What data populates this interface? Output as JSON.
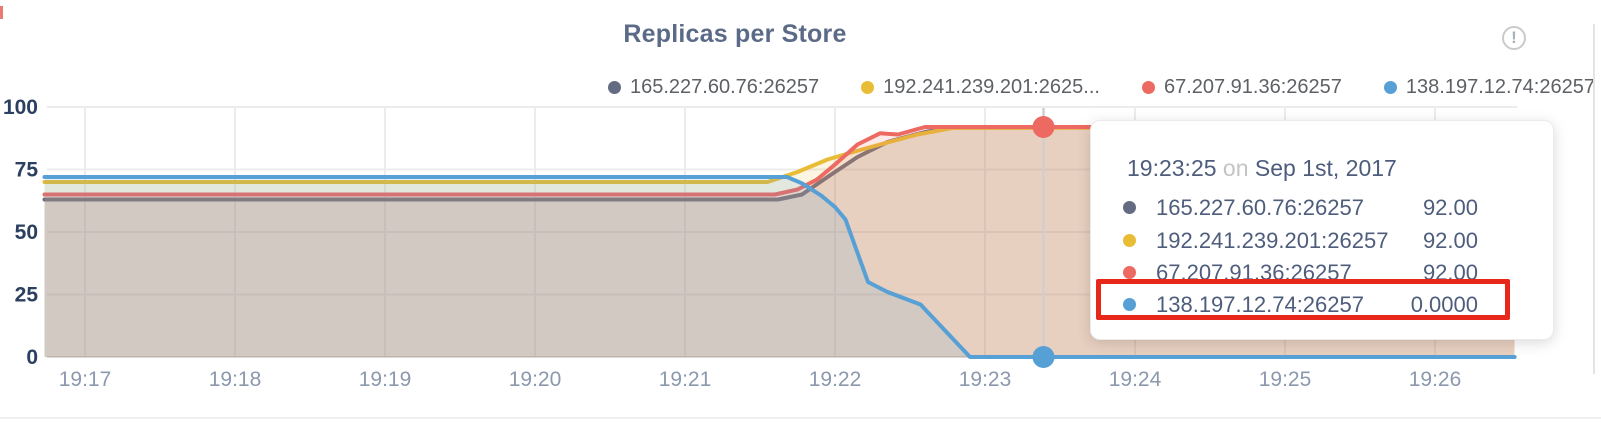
{
  "panel": {
    "title": "Replicas per Store",
    "info_glyph": "!"
  },
  "colors": {
    "highlight_box": "#e8271b",
    "guideline": "#cfcfcf",
    "grid": "#ececec",
    "axis_line": "#ddd8d3",
    "axis_label_y": "#2b4060",
    "axis_label_x": "#8b98ad",
    "title": "#5b6b87",
    "legend_text": "#5d6166",
    "tooltip_text": "#4e5d7c"
  },
  "chart_data": {
    "type": "area",
    "title": "Replicas per Store",
    "xlabel": "",
    "ylabel": "",
    "ylim": [
      0,
      100
    ],
    "y_ticks": [
      0,
      25,
      50,
      75,
      100
    ],
    "x_tick_labels": [
      "19:17",
      "19:18",
      "19:19",
      "19:20",
      "19:21",
      "19:22",
      "19:23",
      "19:24",
      "19:25",
      "19:26"
    ],
    "x_tick_times": [
      17,
      18,
      19,
      20,
      21,
      22,
      23,
      24,
      25,
      26
    ],
    "x_range": [
      16.73,
      26.53
    ],
    "grid": true,
    "legend_position": "top-right",
    "series": [
      {
        "name": "165.227.60.76:26257",
        "legend_label": "165.227.60.76:26257",
        "color": "#646c83",
        "points": [
          [
            16.73,
            63
          ],
          [
            21.62,
            63
          ],
          [
            21.78,
            65
          ],
          [
            21.95,
            72
          ],
          [
            22.15,
            80
          ],
          [
            22.35,
            86
          ],
          [
            22.6,
            90
          ],
          [
            22.8,
            92
          ],
          [
            26.53,
            92
          ]
        ]
      },
      {
        "name": "192.241.239.201:26257",
        "legend_label": "192.241.239.201:2625...",
        "color": "#e8bd35",
        "points": [
          [
            16.73,
            70
          ],
          [
            21.55,
            70
          ],
          [
            21.75,
            74
          ],
          [
            21.95,
            79
          ],
          [
            22.12,
            82
          ],
          [
            22.3,
            85
          ],
          [
            22.55,
            89
          ],
          [
            22.78,
            91.6
          ],
          [
            26.53,
            92
          ]
        ]
      },
      {
        "name": "67.207.91.36:26257",
        "legend_label": "67.207.91.36:26257",
        "color": "#ed6a63",
        "points": [
          [
            16.73,
            65
          ],
          [
            21.6,
            65
          ],
          [
            21.75,
            67
          ],
          [
            21.88,
            71
          ],
          [
            22.0,
            77
          ],
          [
            22.15,
            85
          ],
          [
            22.3,
            89.5
          ],
          [
            22.42,
            89
          ],
          [
            22.6,
            92
          ],
          [
            26.53,
            92
          ]
        ]
      },
      {
        "name": "138.197.12.74:26257",
        "legend_label": "138.197.12.74:26257",
        "color": "#57a0d6",
        "points": [
          [
            16.73,
            72
          ],
          [
            21.68,
            72
          ],
          [
            21.78,
            69.5
          ],
          [
            21.91,
            64.5
          ],
          [
            22.0,
            60
          ],
          [
            22.07,
            55
          ],
          [
            22.22,
            30
          ],
          [
            22.35,
            26
          ],
          [
            22.57,
            21
          ],
          [
            22.9,
            0
          ],
          [
            26.53,
            0
          ]
        ]
      }
    ],
    "hover": {
      "time": "19:23:25",
      "conjunction": "on",
      "date": "Sep 1st, 2017",
      "guideline_t": 23.39,
      "markers": [
        {
          "series": 2,
          "t": 23.39,
          "value": 92
        },
        {
          "series": 3,
          "t": 23.39,
          "value": 0
        }
      ],
      "rows": [
        {
          "series": 0,
          "label": "165.227.60.76:26257",
          "value": "92.00",
          "highlighted": false
        },
        {
          "series": 1,
          "label": "192.241.239.201:26257",
          "value": "92.00",
          "highlighted": false
        },
        {
          "series": 2,
          "label": "67.207.91.36:26257",
          "value": "92.00",
          "highlighted": false
        },
        {
          "series": 3,
          "label": "138.197.12.74:26257",
          "value": "0.0000",
          "highlighted": true
        }
      ]
    }
  }
}
